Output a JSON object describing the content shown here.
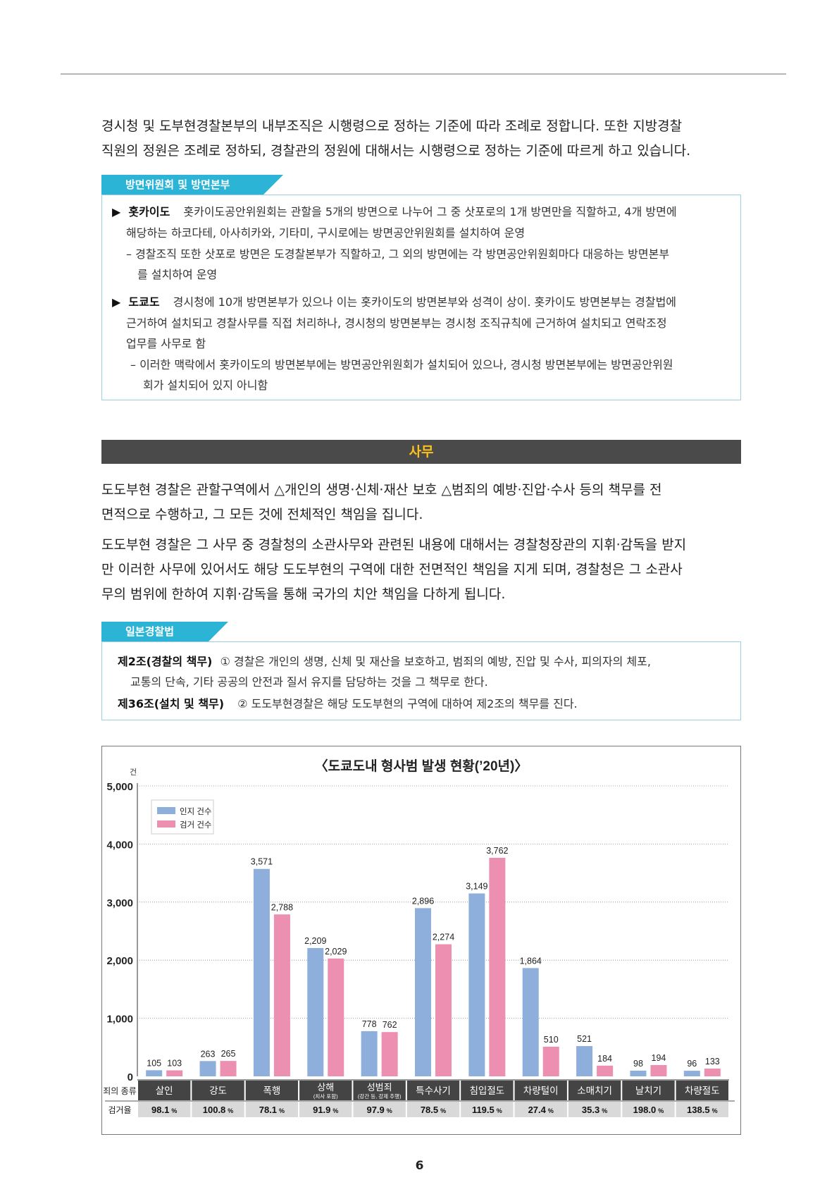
{
  "intro": {
    "lines": [
      "경시청 및 도부현경찰본부의 내부조직은 시행령으로 정하는 기준에 따라 조례로 정합니다. 또한 지방경찰",
      "직원의 정원은 조례로 정하되, 경찰관의 정원에 대해서는 시행령으로 정하는 기준에 따르게 하고 있습니다."
    ]
  },
  "box1": {
    "tab_label": "방면위원회 및 방면본부",
    "hokkaido": {
      "marker": "▶",
      "head": "홋카이도",
      "line1": "홋카이도공안위원회는 관할을 5개의 방면으로 나누어 그 중 삿포로의 1개 방면만을 직할하고, 4개 방면에",
      "line2": "해당하는 하코다테, 아사히카와, 기타미, 구시로에는 방면공안위원회를 설치하여 운영",
      "sub1": "– 경찰조직 또한 삿포로 방면은 도경찰본부가 직할하고, 그 외의 방면에는 각 방면공안위원회마다 대응하는 방면본부",
      "sub2": "를 설치하여 운영"
    },
    "tokyo": {
      "marker": "▶",
      "head": "도쿄도",
      "line1": "경시청에 10개 방면본부가 있으나 이는 홋카이도의 방면본부와 성격이 상이. 홋카이도 방면본부는 경찰법에",
      "line2": "근거하여 설치되고 경찰사무를 직접 처리하나, 경시청의 방면본부는 경시청 조직규칙에 근거하여 설치되고 연락조정",
      "line3": "업무를 사무로 함",
      "sub1": "– 이러한 맥락에서 홋카이도의 방면본부에는 방면공안위원회가 설치되어 있으나, 경시청 방면본부에는 방면공안위원",
      "sub2": "회가 설치되어 있지 아니함"
    }
  },
  "section": {
    "title": "사무"
  },
  "duties": {
    "p1": [
      "도도부현 경찰은 관할구역에서 △개인의 생명·신체·재산 보호 △범죄의 예방·진압·수사 등의 책무를 전",
      "면적으로 수행하고, 그 모든 것에 전체적인 책임을 집니다."
    ],
    "p2": [
      "도도부현 경찰은 그 사무 중 경찰청의 소관사무와 관련된 내용에 대해서는 경찰청장관의 지휘·감독을 받지",
      "만 이러한 사무에 있어서도 해당 도도부현의 구역에 대한 전면적인 책임을 지게 되며, 경찰청은 그 소관사",
      "무의 범위에 한하여 지휘·감독을 통해 국가의 치안 책임을 다하게 됩니다."
    ]
  },
  "box2": {
    "tab_label": "일본경찰법",
    "art2_head": "제2조(경찰의 책무)",
    "art2_line1": "① 경찰은 개인의 생명, 신체 및 재산을 보호하고, 범죄의 예방, 진압 및 수사, 피의자의 체포,",
    "art2_line2": "교통의 단속, 기타 공공의 안전과 질서 유지를 담당하는 것을 그 책무로 한다.",
    "art36_head": "제36조(설치 및 책무)",
    "art36_line": "② 도도부현경찰은 해당 도도부현의 구역에 대하여 제2조의 책무를 진다."
  },
  "chart_data": {
    "type": "bar",
    "title": "〈도쿄도내 형사범 발생 현황(’20년)〉",
    "yunit": "건",
    "ylim": [
      0,
      5000
    ],
    "yticks": [
      {
        "value": 0,
        "label": "0"
      },
      {
        "value": 1000,
        "label": "1,000"
      },
      {
        "value": 2000,
        "label": "2,000"
      },
      {
        "value": 3000,
        "label": "3,000"
      },
      {
        "value": 4000,
        "label": "4,000"
      },
      {
        "value": 5000,
        "label": "5,000"
      }
    ],
    "grid": true,
    "legend_position": "top-left",
    "row_labels": {
      "category": "죄의 종류",
      "rate": "검거율"
    },
    "categories": [
      {
        "name": "살인",
        "sub": ""
      },
      {
        "name": "강도",
        "sub": ""
      },
      {
        "name": "폭행",
        "sub": ""
      },
      {
        "name": "상해",
        "sub": "(치사 포함)"
      },
      {
        "name": "성범죄",
        "sub": "(강간 등, 강제 추행)"
      },
      {
        "name": "특수사기",
        "sub": ""
      },
      {
        "name": "침입절도",
        "sub": ""
      },
      {
        "name": "차량털이",
        "sub": ""
      },
      {
        "name": "소매치기",
        "sub": ""
      },
      {
        "name": "날치기",
        "sub": ""
      },
      {
        "name": "차량절도",
        "sub": ""
      }
    ],
    "series": [
      {
        "name": "인지 건수",
        "color": "#8eaedb",
        "values": [
          105,
          263,
          3571,
          2209,
          778,
          2896,
          3149,
          1864,
          521,
          98,
          96
        ],
        "labels": [
          "105",
          "263",
          "3,571",
          "2,209",
          "778",
          "2,896",
          "3,149",
          "1,864",
          "521",
          "98",
          "96"
        ]
      },
      {
        "name": "검거 건수",
        "color": "#ec8fb0",
        "values": [
          103,
          265,
          2788,
          2029,
          762,
          2274,
          3762,
          510,
          184,
          194,
          133
        ],
        "labels": [
          "103",
          "265",
          "2,788",
          "2,029",
          "762",
          "2,274",
          "3,762",
          "510",
          "184",
          "194",
          "133"
        ]
      }
    ],
    "arrest_rates": [
      "98.1",
      "100.8",
      "78.1",
      "91.9",
      "97.9",
      "78.5",
      "119.5",
      "27.4",
      "35.3",
      "198.0",
      "138.5"
    ],
    "rate_unit": "%"
  },
  "footer": {
    "page_number": "6"
  }
}
